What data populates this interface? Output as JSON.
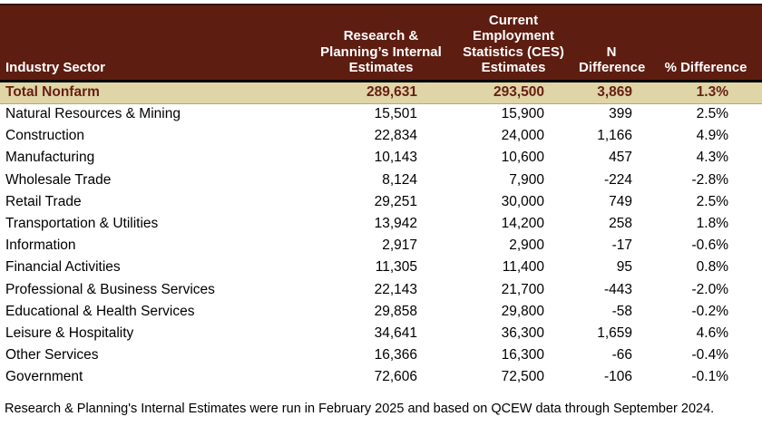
{
  "colors": {
    "header_bg": "#5e1d11",
    "header_text": "#ffffff",
    "header_bottom_border": "#050505",
    "total_row_bg": "#dfd5a6",
    "total_row_text": "#671f14",
    "body_text": "#000000",
    "page_bg": "#ffffff"
  },
  "chart_data": {
    "type": "table",
    "title": "",
    "columns": [
      "Industry Sector",
      "Research & Planning’s Internal Estimates",
      "Current Employment Statistics (CES) Estimates",
      "N Difference",
      "% Difference"
    ],
    "total_row": [
      "Total Nonfarm",
      "289,631",
      "293,500",
      "3,869",
      "1.3%"
    ],
    "rows": [
      [
        "Natural Resources & Mining",
        "15,501",
        "15,900",
        "399",
        "2.5%"
      ],
      [
        "Construction",
        "22,834",
        "24,000",
        "1,166",
        "4.9%"
      ],
      [
        "Manufacturing",
        "10,143",
        "10,600",
        "457",
        "4.3%"
      ],
      [
        "Wholesale Trade",
        "8,124",
        "7,900",
        "-224",
        "-2.8%"
      ],
      [
        "Retail Trade",
        "29,251",
        "30,000",
        "749",
        "2.5%"
      ],
      [
        "Transportation & Utilities",
        "13,942",
        "14,200",
        "258",
        "1.8%"
      ],
      [
        "Information",
        "2,917",
        "2,900",
        "-17",
        "-0.6%"
      ],
      [
        "Financial Activities",
        "11,305",
        "11,400",
        "95",
        "0.8%"
      ],
      [
        "Professional & Business Services",
        "22,143",
        "21,700",
        "-443",
        "-2.0%"
      ],
      [
        "Educational & Health Services",
        "29,858",
        "29,800",
        "-58",
        "-0.2%"
      ],
      [
        "Leisure & Hospitality",
        "34,641",
        "36,300",
        "1,659",
        "4.6%"
      ],
      [
        "Other Services",
        "16,366",
        "16,300",
        "-66",
        "-0.4%"
      ],
      [
        "Government",
        "72,606",
        "72,500",
        "-106",
        "-0.1%"
      ]
    ],
    "footnote": "Research & Planning's Internal Estimates were run in February 2025 and based on QCEW data through September 2024."
  }
}
